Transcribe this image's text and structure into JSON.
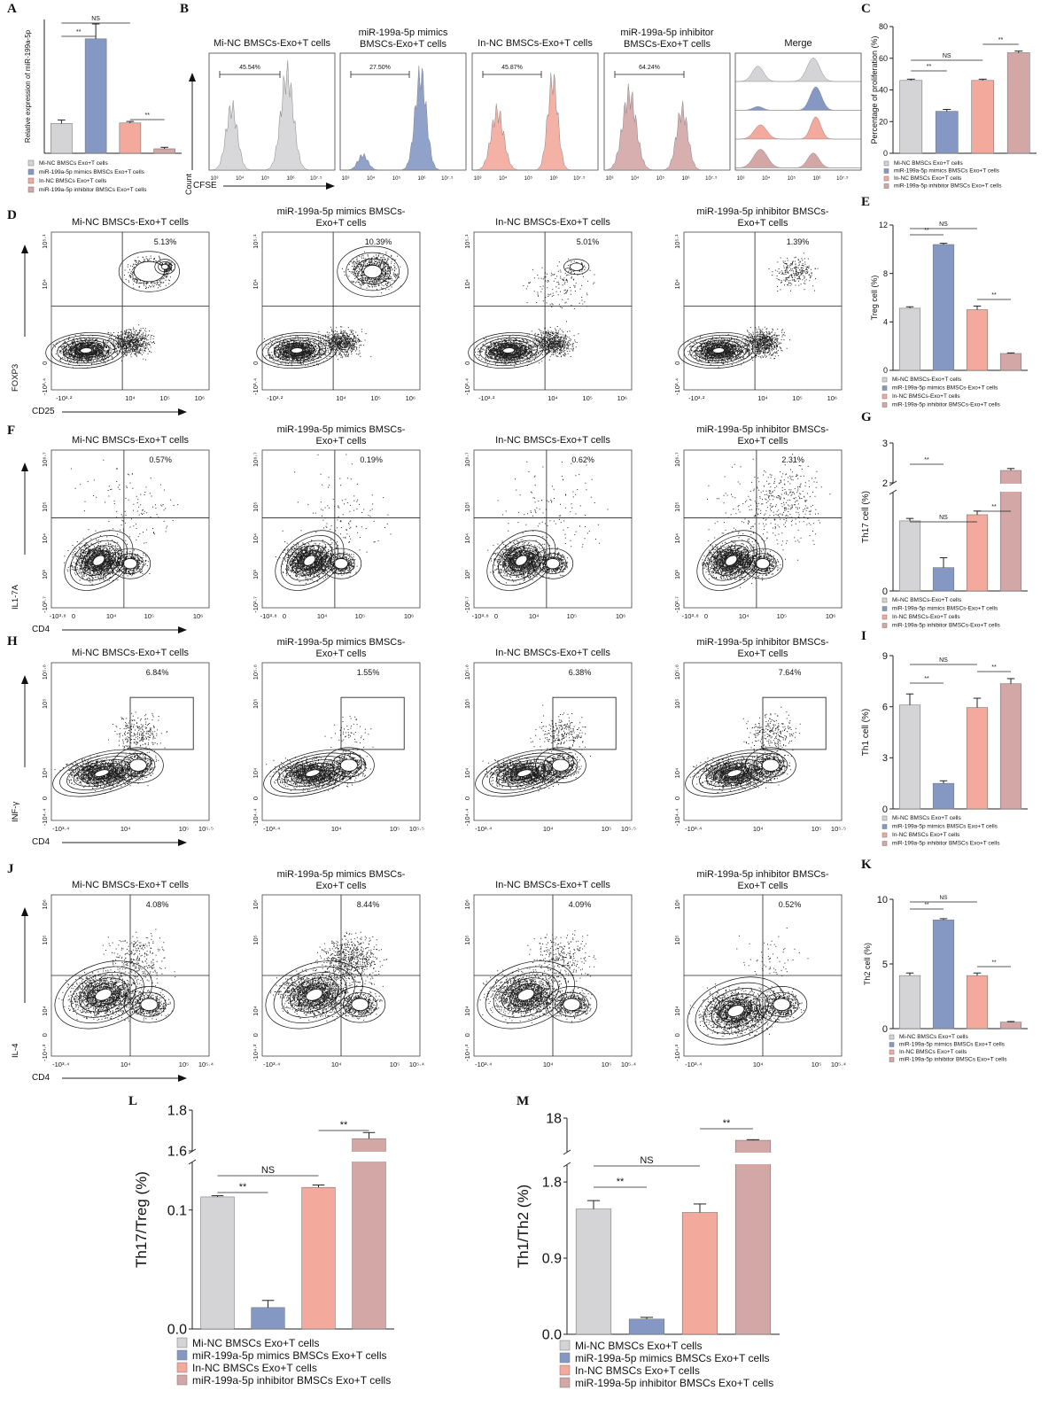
{
  "colors": {
    "grey": "#d4d4d6",
    "blue": "#8598c4",
    "salmon": "#f3a99c",
    "rose": "#d2a7a6",
    "line": "#222222"
  },
  "groups": {
    "exo_short": [
      "Mi-NC BMSCs Exo+T cells",
      "miR-199a-5p mimics BMSCs Exo+T cells",
      "In-NC BMSCs Exo+T cells",
      "miR-199a-5p inhibitor BMSCs Exo+T cells"
    ],
    "exo_dash": [
      "Mi-NC BMSCs-Exo+T cells",
      "miR-199a-5p mimics BMSCs-Exo+T cells",
      "In-NC BMSCs-Exo+T cells",
      "miR-199a-5p inhibitor BMSCs-Exo+T cells"
    ]
  },
  "flow": {
    "B": {
      "titles": [
        "Mi-NC BMSCs-Exo+T cells",
        "miR-199a-5p mimics BMSCs-Exo+T cells",
        "In-NC BMSCs-Exo+T cells",
        "miR-199a-5p inhibitor BMSCs-Exo+T cells",
        "Merge"
      ],
      "pcts": [
        "45.54%",
        "27.50%",
        "45.87%",
        "64.24%"
      ],
      "ylabel": "Count",
      "xlabel": "CFSE",
      "ticks": [
        "10³",
        "10⁴",
        "10⁵",
        "10⁶",
        "10⁷·⁵"
      ]
    },
    "D": {
      "titles": [
        "Mi-NC BMSCs-Exo+T cells",
        "miR-199a-5p mimics BMSCs-Exo+T cells",
        "In-NC BMSCs-Exo+T cells",
        "miR-199a-5p inhibitor BMSCs-Exo+T cells"
      ],
      "pcts": [
        "5.13%",
        "10.39%",
        "5.01%",
        "1.39%"
      ],
      "ylabel": "FOXP3",
      "xlabel": "CD25",
      "xticks": [
        "-10³·²",
        "10⁴",
        "10⁵",
        "10⁶"
      ],
      "yticks": [
        "10⁵·¹",
        "10⁴",
        "0",
        "-10³·⁴"
      ]
    },
    "F": {
      "titles": [
        "Mi-NC BMSCs-Exo+T cells",
        "miR-199a-5p mimics BMSCs-Exo+T cells",
        "In-NC BMSCs-Exo+T cells",
        "miR-199a-5p inhibitor BMSCs-Exo+T cells"
      ],
      "pcts": [
        "0.57%",
        "0.19%",
        "0.62%",
        "2.31%"
      ],
      "ylabel": "IL1-7A",
      "xlabel": "CD4",
      "xticks": [
        "-10³·⁸",
        "0",
        "10⁴",
        "10⁵",
        "10⁶"
      ],
      "yticks": [
        "10⁶·⁷",
        "10⁵",
        "10⁴",
        "10³",
        "-10²·⁷"
      ]
    },
    "H": {
      "titles": [
        "Mi-NC BMSCs-Exo+T cells",
        "miR-199a-5p mimics BMSCs-Exo+T cells",
        "In-NC BMSCs-Exo+T cells",
        "miR-199a-5p inhibitor BMSCs-Exo+T cells"
      ],
      "pcts": [
        "6.84%",
        "1.55%",
        "6.38%",
        "7.64%"
      ],
      "ylabel": "INF-γ",
      "xlabel": "CD4",
      "xticks": [
        "-10³·⁴",
        "10⁴",
        "10⁵",
        "10⁵·⁵"
      ],
      "yticks": [
        "10⁵·⁸",
        "10⁵",
        "10⁴",
        "0",
        "-10⁴·⁴"
      ]
    },
    "J": {
      "titles": [
        "Mi-NC BMSCs-Exo+T cells",
        "miR-199a-5p mimics BMSCs-Exo+T cells",
        "In-NC BMSCs-Exo+T cells",
        "miR-199a-5p inhibitor BMSCs-Exo+T cells"
      ],
      "pcts": [
        "4.08%",
        "8.44%",
        "4.09%",
        "0.52%"
      ],
      "ylabel": "IL-4",
      "xlabel": "CD4",
      "xticks": [
        "-10³·⁴",
        "10⁴",
        "10⁵",
        "10⁵·⁴"
      ],
      "yticks": [
        "10⁶",
        "10⁵",
        "10⁴",
        "0",
        "-10⁴·³"
      ]
    }
  },
  "chart_data": [
    {
      "panel": "A",
      "type": "bar",
      "ylabel": "Relative expression of miR-199a-5p",
      "categories": [
        "Mi-NC BMSCs Exo+T cells",
        "miR-199a-5p mimics BMSCs Exo+T cells",
        "In-NC BMSCs Exo+T cells",
        "miR-199a-5p inhibitor BMSCs Exo+T cells"
      ],
      "values": [
        1.0,
        3.85,
        1.02,
        0.15
      ],
      "errors": [
        0.12,
        0.5,
        0.05,
        0.05
      ],
      "ylim": [
        0,
        4.5
      ],
      "yticks": [],
      "sig": [
        {
          "a": 0,
          "b": 1,
          "label": "**"
        },
        {
          "a": 2,
          "b": 3,
          "label": "**"
        },
        {
          "a": 0,
          "b": 2,
          "label": "NS"
        }
      ]
    },
    {
      "panel": "C",
      "type": "bar",
      "ylabel": "Percentage of proliferation (%)",
      "categories": [
        "Mi-NC BMSCs Exo+T cells",
        "miR-199a-5p mimics BMSCs Exo+T cells",
        "In-NC BMSCs Exo+T cells",
        "miR-199a-5p inhibitor BMSCs Exo+T cells"
      ],
      "values": [
        46,
        26.5,
        46,
        63.5
      ],
      "errors": [
        0.8,
        1.2,
        0.8,
        1.0
      ],
      "ylim": [
        0,
        80
      ],
      "yticks": [
        0,
        20,
        40,
        60,
        80
      ],
      "sig": [
        {
          "a": 0,
          "b": 1,
          "label": "**"
        },
        {
          "a": 0,
          "b": 2,
          "label": "NS"
        },
        {
          "a": 2,
          "b": 3,
          "label": "**"
        }
      ]
    },
    {
      "panel": "E",
      "type": "bar",
      "ylabel": "Treg cell (%)",
      "categories": [
        "Mi-NC BMSCs-Exo+T cells",
        "miR-199a-5p mimics BMSCs-Exo+T cells",
        "In-NC BMSCs-Exo+T cells",
        "miR-199a-5p inhibitor BMSCs-Exo+T cells"
      ],
      "values": [
        5.13,
        10.39,
        5.01,
        1.39
      ],
      "errors": [
        0.12,
        0.1,
        0.3,
        0.05
      ],
      "ylim": [
        0,
        12
      ],
      "yticks": [
        0,
        4,
        8,
        12
      ],
      "sig": [
        {
          "a": 0,
          "b": 1,
          "label": "**"
        },
        {
          "a": 0,
          "b": 2,
          "label": "NS"
        },
        {
          "a": 2,
          "b": 3,
          "label": "**"
        }
      ]
    },
    {
      "panel": "G",
      "type": "bar",
      "ylabel": "Th17 cell (%)",
      "axis_break": true,
      "categories": [
        "Mi-NC BMSCs-Exo+T cells",
        "miR-199a-5p mimics BMSCs-Exo+T cells",
        "In-NC BMSCs-Exo+T cells",
        "miR-199a-5p inhibitor BMSCs-Exo+T cells"
      ],
      "values": [
        0.57,
        0.19,
        0.62,
        2.31
      ],
      "errors": [
        0.02,
        0.08,
        0.03,
        0.05
      ],
      "yticks": [
        0,
        2,
        3
      ],
      "sig": [
        {
          "a": 0,
          "b": 1,
          "label": "**"
        },
        {
          "a": 0,
          "b": 2,
          "label": "NS"
        },
        {
          "a": 2,
          "b": 3,
          "label": "**"
        }
      ]
    },
    {
      "panel": "I",
      "type": "bar",
      "ylabel": "Th1 cell (%)",
      "categories": [
        "Mi-NC BMSCs Exo+T cells",
        "miR-199a-5p mimics BMSCs Exo+T cells",
        "In-NC BMSCs Exo+T cells",
        "miR-199a-5p inhibitor BMSCs Exo+T cells"
      ],
      "values": [
        6.1,
        1.5,
        5.95,
        7.35
      ],
      "errors": [
        0.65,
        0.15,
        0.55,
        0.3
      ],
      "ylim": [
        0,
        9
      ],
      "yticks": [
        0,
        3,
        6,
        9
      ],
      "sig": [
        {
          "a": 0,
          "b": 1,
          "label": "**"
        },
        {
          "a": 0,
          "b": 2,
          "label": "NS"
        },
        {
          "a": 2,
          "b": 3,
          "label": "**"
        }
      ]
    },
    {
      "panel": "K",
      "type": "bar",
      "ylabel": "Th2 cell (%)",
      "categories": [
        "Mi-NC BMSCs Exo+T cells",
        "miR-199a-5p mimics BMSCs Exo+T cells",
        "In-NC BMSCs Exo+T cells",
        "miR-199a-5p inhibitor BMSCs Exo+T cells"
      ],
      "values": [
        4.1,
        8.4,
        4.1,
        0.5
      ],
      "errors": [
        0.2,
        0.1,
        0.2,
        0.05
      ],
      "ylim": [
        0,
        10
      ],
      "yticks": [
        0,
        5,
        10
      ],
      "sig": [
        {
          "a": 0,
          "b": 1,
          "label": "**"
        },
        {
          "a": 0,
          "b": 2,
          "label": "NS"
        },
        {
          "a": 2,
          "b": 3,
          "label": "**"
        }
      ]
    },
    {
      "panel": "L",
      "type": "bar",
      "ylabel": "Th17/Treg (%)",
      "axis_break": true,
      "categories": [
        "Mi-NC BMSCs Exo+T cells",
        "miR-199a-5p mimics BMSCs Exo+T cells",
        "In-NC BMSCs Exo+T cells",
        "miR-199a-5p inhibitor BMSCs Exo+T cells"
      ],
      "values": [
        0.111,
        0.018,
        0.119,
        1.66
      ],
      "errors": [
        0.001,
        0.006,
        0.002,
        0.03
      ],
      "yticks": [
        0.0,
        0.1,
        1.6,
        1.8
      ],
      "sig": [
        {
          "a": 0,
          "b": 1,
          "label": "**"
        },
        {
          "a": 0,
          "b": 2,
          "label": "NS"
        },
        {
          "a": 2,
          "b": 3,
          "label": "**"
        }
      ]
    },
    {
      "panel": "M",
      "type": "bar",
      "ylabel": "Th1/Th2 (%)",
      "axis_break": true,
      "categories": [
        "Mi-NC BMSCs Exo+T cells",
        "miR-199a-5p mimics BMSCs Exo+T cells",
        "In-NC BMSCs Exo+T cells",
        "miR-199a-5p inhibitor BMSCs Exo+T cells"
      ],
      "values": [
        1.48,
        0.18,
        1.44,
        14.7
      ],
      "errors": [
        0.1,
        0.02,
        0.1,
        0.1
      ],
      "yticks": [
        0.0,
        0.9,
        1.8,
        18
      ],
      "sig": [
        {
          "a": 0,
          "b": 1,
          "label": "**"
        },
        {
          "a": 0,
          "b": 2,
          "label": "NS"
        },
        {
          "a": 2,
          "b": 3,
          "label": "**"
        }
      ]
    }
  ]
}
